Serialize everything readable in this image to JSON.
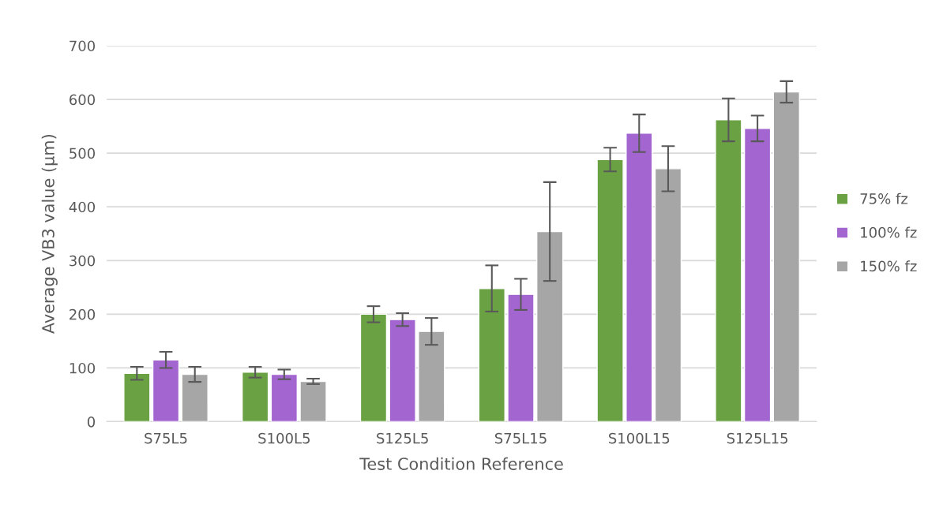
{
  "chart_data": {
    "type": "bar",
    "xlabel": "Test Condition Reference",
    "ylabel": "Average VB3 value (µm)",
    "categories": [
      "S75L5",
      "S100L5",
      "S125L5",
      "S75L15",
      "S100L15",
      "S125L15"
    ],
    "series": [
      {
        "name": "75% fz",
        "color": "#6aa142",
        "values": [
          90,
          92,
          200,
          248,
          488,
          562
        ],
        "errors": [
          12,
          10,
          15,
          43,
          22,
          40
        ]
      },
      {
        "name": "100% fz",
        "color": "#a365cf",
        "values": [
          115,
          88,
          190,
          237,
          537,
          546
        ],
        "errors": [
          15,
          9,
          12,
          29,
          35,
          24
        ]
      },
      {
        "name": "150% fz",
        "color": "#a6a6a6",
        "values": [
          88,
          75,
          168,
          354,
          471,
          614
        ],
        "errors": [
          14,
          5,
          25,
          92,
          42,
          20
        ]
      }
    ],
    "ylim": [
      0,
      700
    ],
    "yticks": [
      0,
      100,
      200,
      300,
      400,
      500,
      600,
      700
    ],
    "grid": "y",
    "legend": "right"
  }
}
